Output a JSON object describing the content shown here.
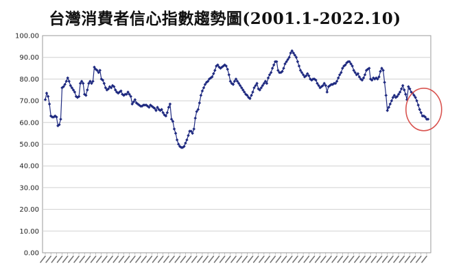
{
  "chart_data": {
    "type": "line",
    "title": "台灣消費者信心指數趨勢圖(2001.1-2022.10)",
    "xlabel": "",
    "ylabel": "",
    "ylim": [
      0,
      100
    ],
    "yticks": [
      "0.00",
      "10.00",
      "20.00",
      "30.00",
      "40.00",
      "50.00",
      "60.00",
      "70.00",
      "80.00",
      "90.00",
      "100.00"
    ],
    "grid": "horizontal",
    "legend": "none",
    "x_range": [
      "2001.1",
      "2022.10"
    ],
    "x_tick_labels_note": "monthly date labels rotated, illegible",
    "highlight_circle": "last several months (2022)",
    "colors": {
      "series": "#1f2a80",
      "grid": "#d0d0d0",
      "circle": "#d9534f"
    },
    "series": [
      {
        "values": [
          70.5,
          73.5,
          72,
          68.5,
          63,
          62.5,
          62.5,
          63,
          62.5,
          58.5,
          59,
          61.5,
          76,
          76.5,
          77.5,
          79,
          80.5,
          79,
          77,
          76,
          75,
          74,
          72,
          71.5,
          72,
          78,
          79,
          78,
          73,
          72.5,
          75,
          78,
          79,
          78,
          79,
          85.5,
          84.5,
          84,
          83,
          84,
          80,
          79.5,
          78,
          76,
          75,
          75.5,
          76.5,
          76,
          77,
          76.5,
          75,
          74,
          73.5,
          74,
          74.5,
          73,
          72.5,
          73,
          73,
          74,
          73,
          72,
          68.5,
          69.5,
          70.5,
          69,
          68.5,
          68,
          67.5,
          67.5,
          68,
          68,
          68,
          67.5,
          67,
          68,
          67.5,
          67,
          66.5,
          65.5,
          67,
          66,
          65.5,
          66,
          64.5,
          63.5,
          63,
          64.5,
          67,
          68.5,
          61.5,
          60.5,
          57,
          55,
          52,
          50,
          49,
          48.5,
          48.5,
          49,
          50.5,
          52,
          54,
          56,
          56,
          55,
          57,
          62,
          65,
          66,
          69,
          72.5,
          74.5,
          76,
          77.5,
          78.5,
          79,
          80,
          80.5,
          81,
          82.5,
          84,
          86,
          86.5,
          85.5,
          85,
          85.5,
          86,
          86.5,
          86,
          84.5,
          82,
          79,
          78,
          77.5,
          79,
          80,
          79,
          78,
          77,
          76,
          75,
          74,
          73,
          72.5,
          71.5,
          71,
          72.5,
          74,
          76,
          77,
          78,
          75.5,
          75,
          76,
          77,
          78,
          79,
          78,
          80.5,
          82,
          83,
          85,
          86.5,
          88,
          88,
          84,
          83,
          83,
          83.5,
          85,
          87,
          88,
          89,
          90,
          92,
          93,
          92,
          91,
          90,
          88,
          86,
          84,
          83,
          82,
          81,
          81.5,
          82.5,
          81.5,
          80,
          79.5,
          80,
          80,
          79.5,
          78,
          77,
          76,
          76.5,
          77,
          78,
          77,
          74,
          76.5,
          77,
          77.5,
          77.5,
          78,
          78,
          79,
          80.5,
          82,
          83,
          85,
          86,
          86.5,
          87.5,
          88,
          88,
          87,
          86,
          84,
          83,
          82,
          82.5,
          81,
          80,
          79.5,
          80.5,
          82,
          84,
          84.5,
          85,
          80,
          79.5,
          80.5,
          80,
          80.5,
          80,
          81,
          83.5,
          85,
          84,
          78.5,
          72.5,
          65.5,
          67,
          68.5,
          70,
          71.5,
          72.5,
          71.5,
          72,
          73,
          74,
          75.5,
          77,
          75,
          73,
          70.5,
          76.5,
          75.5,
          74,
          73.5,
          72.5,
          71.5,
          70,
          68,
          66,
          64.5,
          63,
          63,
          62.5,
          61.5,
          61.5
        ]
      }
    ]
  }
}
